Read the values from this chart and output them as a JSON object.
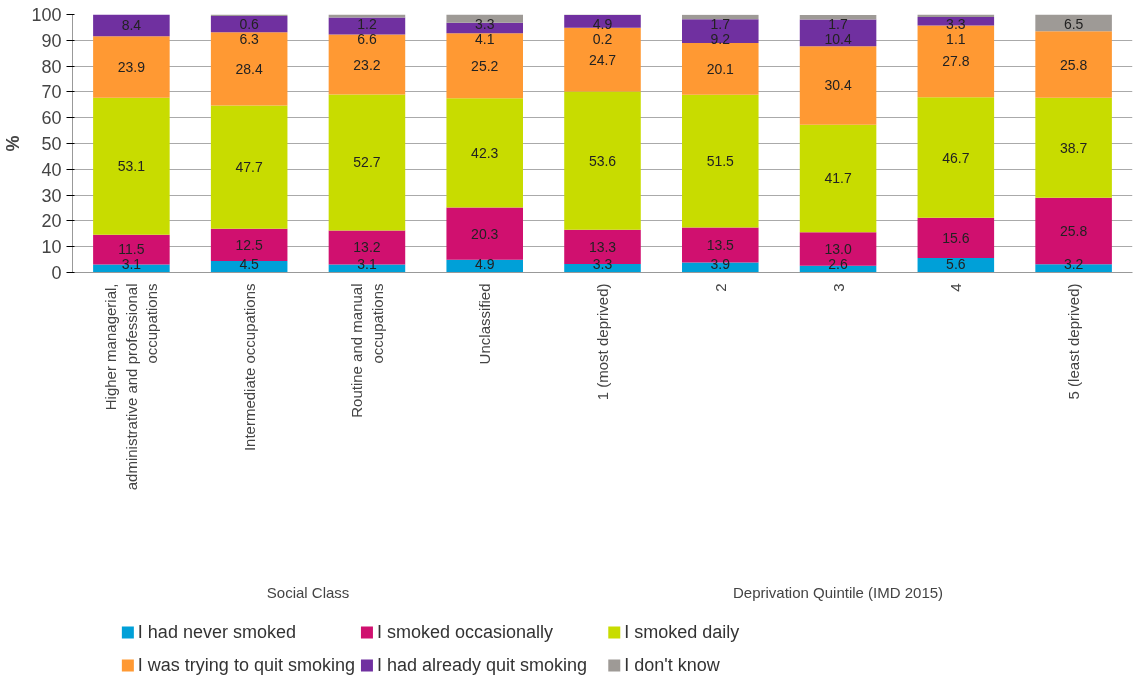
{
  "chart_data": {
    "type": "bar",
    "stacked": true,
    "ylabel": "%",
    "categories": [
      "Higher managerial,\nadministrative and professional\noccupations",
      "Intermediate occupations",
      "Routine and manual\noccupations",
      "Unclassified",
      "1 (most deprived)",
      "2",
      "3",
      "4",
      "5 (least deprived)"
    ],
    "series": [
      {
        "name": "I had never smoked",
        "color": "#00a0d8",
        "values": [
          3.1,
          4.5,
          3.1,
          4.9,
          3.3,
          3.9,
          2.6,
          5.6,
          3.2
        ],
        "value_labels": [
          "3.1",
          "4.5",
          "3.1",
          "4.9",
          "3.3",
          "3.9",
          "2.6",
          "5.6",
          "3.2"
        ]
      },
      {
        "name": "I smoked occasionally",
        "color": "#d0106f",
        "values": [
          11.5,
          12.5,
          13.2,
          20.3,
          13.3,
          13.5,
          13.0,
          15.6,
          25.8
        ],
        "value_labels": [
          "11.5",
          "12.5",
          "13.2",
          "20.3",
          "13.3",
          "13.5",
          "13.0",
          "15.6",
          "25.8"
        ]
      },
      {
        "name": "I smoked daily",
        "color": "#c8dc00",
        "values": [
          53.1,
          47.7,
          52.7,
          42.3,
          53.6,
          51.5,
          41.7,
          46.7,
          38.7
        ],
        "value_labels": [
          "53.1",
          "47.7",
          "52.7",
          "42.3",
          "53.6",
          "51.5",
          "41.7",
          "46.7",
          "38.7"
        ]
      },
      {
        "name": "I was trying to quit smoking",
        "color": "#ff9933",
        "values": [
          23.9,
          28.4,
          23.2,
          25.2,
          24.7,
          20.1,
          30.4,
          27.8,
          25.8
        ],
        "value_labels": [
          "23.9",
          "28.4",
          "23.2",
          "25.2",
          "24.7",
          "20.1",
          "30.4",
          "27.8",
          "25.8"
        ]
      },
      {
        "name": "I had already quit smoking",
        "color": "#7030a0",
        "values": [
          8.4,
          6.3,
          6.6,
          4.1,
          4.9,
          9.2,
          10.4,
          3.3,
          null
        ],
        "value_labels": [
          "8.4",
          "6.3",
          "6.6",
          "4.1",
          "4.9",
          "9.2",
          "10.4",
          "3.3",
          null
        ]
      },
      {
        "name": "I don't know",
        "color": "#9e9a96",
        "values": [
          null,
          0.6,
          1.2,
          3.3,
          0.2,
          1.7,
          1.7,
          1.1,
          6.5
        ],
        "value_labels": [
          null,
          "0.6",
          "1.2",
          "3.3",
          "0.2",
          "1.7",
          "1.7",
          "1.1",
          "6.5"
        ]
      }
    ],
    "ylim": [
      0,
      100
    ],
    "yticks": [
      0,
      10,
      20,
      30,
      40,
      50,
      60,
      70,
      80,
      90,
      100
    ],
    "grid": "y",
    "legend": "bottom",
    "annotations": [
      "Social Class",
      "Deprivation Quintile (IMD 2015)"
    ]
  }
}
